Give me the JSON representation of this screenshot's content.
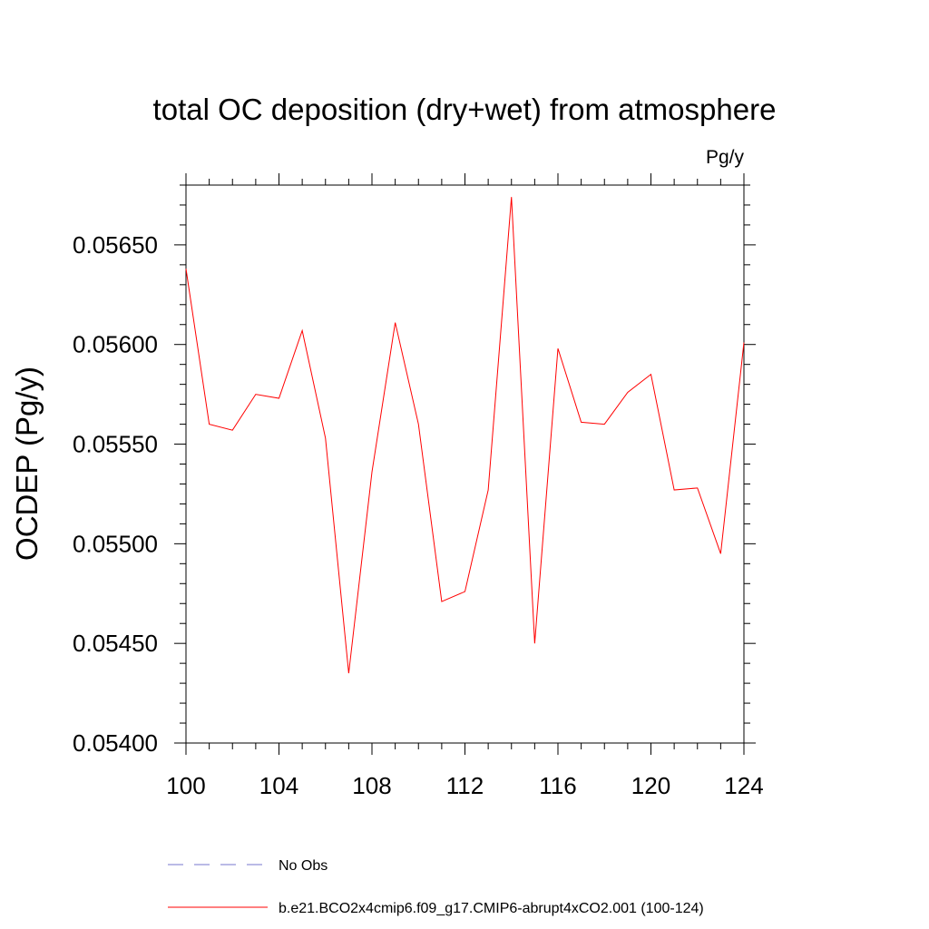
{
  "chart_data": {
    "type": "line",
    "title": "total OC deposition (dry+wet) from atmosphere",
    "units": "Pg/y",
    "xlabel": "",
    "ylabel": "OCDEP  (Pg/y)",
    "xlim": [
      100,
      124
    ],
    "ylim": [
      0.054,
      0.0568
    ],
    "x_ticks": [
      100,
      104,
      108,
      112,
      116,
      120,
      124
    ],
    "x_tick_labels": [
      "100",
      "104",
      "108",
      "112",
      "116",
      "120",
      "124"
    ],
    "y_ticks": [
      0.054,
      0.0545,
      0.055,
      0.0555,
      0.056,
      0.0565
    ],
    "y_tick_labels": [
      "0.05400",
      "0.05450",
      "0.05500",
      "0.05550",
      "0.05600",
      "0.05650"
    ],
    "grid": false,
    "legend_position": "bottom",
    "x": [
      100,
      101,
      102,
      103,
      104,
      105,
      106,
      107,
      108,
      109,
      110,
      111,
      112,
      113,
      114,
      115,
      116,
      117,
      118,
      119,
      120,
      121,
      122,
      123,
      124
    ],
    "series": [
      {
        "name": "b.e21.BCO2x4cmip6.f09_g17.CMIP6-abrupt4xCO2.001 (100-124)",
        "color": "#ff0000",
        "style": "solid",
        "values": [
          0.05638,
          0.0556,
          0.05557,
          0.05575,
          0.05573,
          0.05607,
          0.05553,
          0.05435,
          0.05536,
          0.05611,
          0.0556,
          0.05471,
          0.05476,
          0.05527,
          0.05674,
          0.0545,
          0.05598,
          0.05561,
          0.0556,
          0.05576,
          0.05585,
          0.05527,
          0.05528,
          0.05495,
          0.05601
        ]
      }
    ],
    "legend": [
      {
        "label": "No Obs",
        "color": "#7777cc",
        "style": "dashed"
      },
      {
        "label": "b.e21.BCO2x4cmip6.f09_g17.CMIP6-abrupt4xCO2.001 (100-124)",
        "color": "#ff0000",
        "style": "solid"
      }
    ]
  }
}
